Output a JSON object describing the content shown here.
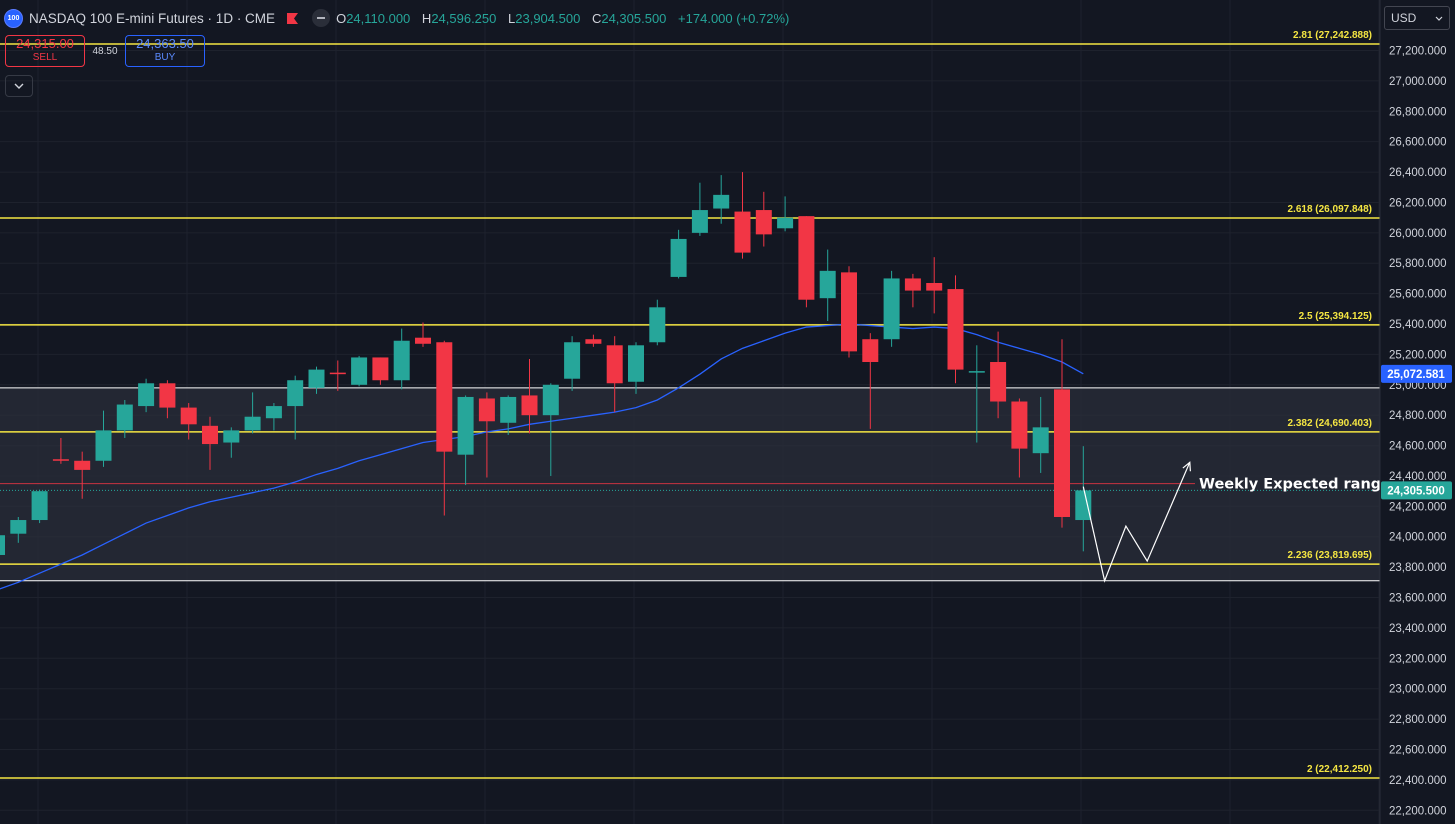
{
  "header": {
    "symbol_badge": "100",
    "title": "NASDAQ 100 E-mini Futures · 1D · CME",
    "ohlc": {
      "o_label": "O",
      "o": "24,110.000",
      "h_label": "H",
      "h": "24,596.250",
      "l_label": "L",
      "l": "23,904.500",
      "c_label": "C",
      "c": "24,305.500",
      "change": "+174.000 (+0.72%)"
    }
  },
  "trade": {
    "sell_price": "24,315.00",
    "sell_label": "SELL",
    "spread": "48.50",
    "buy_price": "24,363.50",
    "buy_label": "BUY"
  },
  "currency": "USD",
  "colors": {
    "up": "#26a69a",
    "down": "#f23645",
    "fib": "#f5e642",
    "ma": "#2962ff",
    "bg": "#131722"
  },
  "chart_data": {
    "type": "candlestick",
    "title": "NASDAQ 100 E-mini Futures · 1D · CME",
    "y_axis": {
      "ylim": [
        22100,
        27400
      ],
      "ticks": [
        22200,
        22400,
        22600,
        22800,
        23000,
        23200,
        23400,
        23600,
        23800,
        24000,
        24200,
        24400,
        24600,
        24800,
        25000,
        25200,
        25400,
        25600,
        25800,
        26000,
        26200,
        26400,
        26600,
        26800,
        27000,
        27200
      ]
    },
    "candles": [
      {
        "o": 23880,
        "h": 24020,
        "l": 23840,
        "c": 24010
      },
      {
        "o": 24020,
        "h": 24130,
        "l": 23960,
        "c": 24110
      },
      {
        "o": 24110,
        "h": 24310,
        "l": 24090,
        "c": 24300
      },
      {
        "o": 24510,
        "h": 24650,
        "l": 24480,
        "c": 24500
      },
      {
        "o": 24500,
        "h": 24560,
        "l": 24250,
        "c": 24440
      },
      {
        "o": 24500,
        "h": 24830,
        "l": 24460,
        "c": 24700
      },
      {
        "o": 24700,
        "h": 24900,
        "l": 24650,
        "c": 24870
      },
      {
        "o": 24860,
        "h": 25040,
        "l": 24820,
        "c": 25010
      },
      {
        "o": 25010,
        "h": 25030,
        "l": 24780,
        "c": 24850
      },
      {
        "o": 24850,
        "h": 24880,
        "l": 24640,
        "c": 24740
      },
      {
        "o": 24730,
        "h": 24790,
        "l": 24440,
        "c": 24610
      },
      {
        "o": 24620,
        "h": 24720,
        "l": 24520,
        "c": 24700
      },
      {
        "o": 24700,
        "h": 24950,
        "l": 24680,
        "c": 24790
      },
      {
        "o": 24780,
        "h": 24880,
        "l": 24700,
        "c": 24860
      },
      {
        "o": 24860,
        "h": 25060,
        "l": 24640,
        "c": 25030
      },
      {
        "o": 24980,
        "h": 25120,
        "l": 24940,
        "c": 25100
      },
      {
        "o": 25080,
        "h": 25160,
        "l": 24960,
        "c": 25070
      },
      {
        "o": 25000,
        "h": 25190,
        "l": 24990,
        "c": 25180
      },
      {
        "o": 25180,
        "h": 25180,
        "l": 25000,
        "c": 25030
      },
      {
        "o": 25030,
        "h": 25370,
        "l": 24970,
        "c": 25290
      },
      {
        "o": 25310,
        "h": 25410,
        "l": 25250,
        "c": 25270
      },
      {
        "o": 25280,
        "h": 25290,
        "l": 24140,
        "c": 24560
      },
      {
        "o": 24540,
        "h": 24930,
        "l": 24340,
        "c": 24920
      },
      {
        "o": 24910,
        "h": 24950,
        "l": 24390,
        "c": 24760
      },
      {
        "o": 24750,
        "h": 24930,
        "l": 24670,
        "c": 24920
      },
      {
        "o": 24930,
        "h": 25170,
        "l": 24680,
        "c": 24800
      },
      {
        "o": 24800,
        "h": 25010,
        "l": 24400,
        "c": 25000
      },
      {
        "o": 25040,
        "h": 25320,
        "l": 24960,
        "c": 25280
      },
      {
        "o": 25300,
        "h": 25330,
        "l": 25250,
        "c": 25270
      },
      {
        "o": 25260,
        "h": 25320,
        "l": 24820,
        "c": 25010
      },
      {
        "o": 25020,
        "h": 25280,
        "l": 24940,
        "c": 25260
      },
      {
        "o": 25280,
        "h": 25560,
        "l": 25260,
        "c": 25510
      },
      {
        "o": 25710,
        "h": 26020,
        "l": 25700,
        "c": 25960
      },
      {
        "o": 26000,
        "h": 26330,
        "l": 25980,
        "c": 26150
      },
      {
        "o": 26160,
        "h": 26380,
        "l": 26060,
        "c": 26250
      },
      {
        "o": 26140,
        "h": 26400,
        "l": 25830,
        "c": 25870
      },
      {
        "o": 26150,
        "h": 26270,
        "l": 25910,
        "c": 25990
      },
      {
        "o": 26030,
        "h": 26240,
        "l": 26010,
        "c": 26100
      },
      {
        "o": 26110,
        "h": 26110,
        "l": 25510,
        "c": 25560
      },
      {
        "o": 25570,
        "h": 25890,
        "l": 25420,
        "c": 25750
      },
      {
        "o": 25740,
        "h": 25780,
        "l": 25180,
        "c": 25220
      },
      {
        "o": 25300,
        "h": 25340,
        "l": 24710,
        "c": 25150
      },
      {
        "o": 25300,
        "h": 25750,
        "l": 25250,
        "c": 25700
      },
      {
        "o": 25700,
        "h": 25730,
        "l": 25510,
        "c": 25620
      },
      {
        "o": 25670,
        "h": 25840,
        "l": 25470,
        "c": 25620
      },
      {
        "o": 25630,
        "h": 25720,
        "l": 25010,
        "c": 25100
      },
      {
        "o": 25090,
        "h": 25260,
        "l": 24620,
        "c": 25090
      },
      {
        "o": 25150,
        "h": 25350,
        "l": 24780,
        "c": 24890
      },
      {
        "o": 24890,
        "h": 24910,
        "l": 24390,
        "c": 24580
      },
      {
        "o": 24550,
        "h": 24920,
        "l": 24420,
        "c": 24720
      },
      {
        "o": 24970,
        "h": 25300,
        "l": 24060,
        "c": 24130
      },
      {
        "o": 24110,
        "h": 24596,
        "l": 23904,
        "c": 24305
      }
    ],
    "moving_average": [
      23650,
      23700,
      23760,
      23820,
      23880,
      23950,
      24020,
      24090,
      24140,
      24190,
      24230,
      24260,
      24290,
      24320,
      24360,
      24410,
      24450,
      24500,
      24540,
      24580,
      24620,
      24640,
      24660,
      24690,
      24710,
      24740,
      24760,
      24780,
      24800,
      24820,
      24850,
      24900,
      24980,
      25070,
      25170,
      25240,
      25290,
      25340,
      25380,
      25390,
      25400,
      25390,
      25380,
      25370,
      25380,
      25370,
      25330,
      25280,
      25240,
      25200,
      25150,
      25072
    ],
    "ma_value_label": "25,072.581",
    "last_price_label": "24,305.500",
    "fib_levels": [
      {
        "value": 27242.888,
        "label": "2.81 (27,242.888)"
      },
      {
        "value": 26097.848,
        "label": "2.618 (26,097.848)"
      },
      {
        "value": 25394.125,
        "label": "2.5 (25,394.125)"
      },
      {
        "value": 24690.403,
        "label": "2.382 (24,690.403)"
      },
      {
        "value": 23819.695,
        "label": "2.236 (23,819.695)"
      },
      {
        "value": 22412.25,
        "label": "2 (22,412.250)"
      }
    ],
    "expected_range": {
      "upper": 24980,
      "lower": 23710,
      "label": "Weekly Expected range"
    },
    "red_price_line": 24350,
    "projection_path": [
      [
        51,
        24330
      ],
      [
        52,
        23710
      ],
      [
        53,
        24070
      ],
      [
        54,
        23840
      ],
      [
        56,
        24490
      ]
    ]
  }
}
